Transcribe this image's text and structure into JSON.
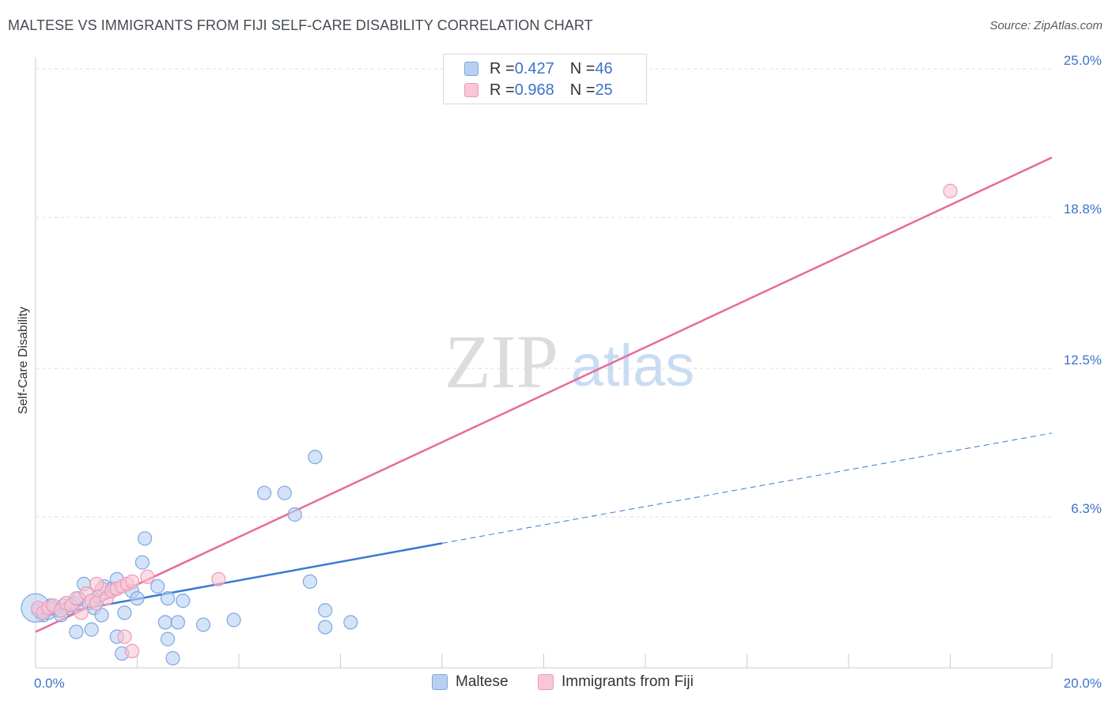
{
  "header": {
    "title": "MALTESE VS IMMIGRANTS FROM FIJI SELF-CARE DISABILITY CORRELATION CHART",
    "source": "Source: ZipAtlas.com"
  },
  "watermark": {
    "zip": "ZIP",
    "atlas": "atlas"
  },
  "legend": {
    "r_label": "R = ",
    "n_label": "N = ",
    "series": [
      {
        "name": "Maltese",
        "r": "0.427",
        "n": "46",
        "fill": "#b7d0f2",
        "stroke": "#7ea6e0"
      },
      {
        "name": "Immigrants from Fiji",
        "r": "0.968",
        "n": "25",
        "fill": "#f8c7d6",
        "stroke": "#ee9ab4"
      }
    ]
  },
  "chart_data": {
    "type": "scatter",
    "title": "MALTESE VS IMMIGRANTS FROM FIJI SELF-CARE DISABILITY CORRELATION CHART",
    "xlabel": "",
    "ylabel": "Self-Care Disability",
    "xlim": [
      0,
      20
    ],
    "ylim": [
      0,
      25.5
    ],
    "x_tick_labels": [
      {
        "value": 0,
        "label": "0.0%"
      },
      {
        "value": 20,
        "label": "20.0%"
      }
    ],
    "x_minor_ticks": [
      2,
      4,
      6,
      8,
      10,
      12,
      14,
      16,
      18,
      20
    ],
    "y_tick_labels": [
      {
        "value": 6.3,
        "label": "6.3%"
      },
      {
        "value": 12.5,
        "label": "12.5%"
      },
      {
        "value": 18.8,
        "label": "18.8%"
      },
      {
        "value": 25.0,
        "label": "25.0%"
      }
    ],
    "grid": true,
    "legend_position": "top-center",
    "series": [
      {
        "name": "Maltese",
        "color": "#3a78d4",
        "fill": "#b7d0f2",
        "stroke": "#7ea6e0",
        "trend": {
          "x0": 0,
          "y0": 2.1,
          "x1": 8.0,
          "y1": 5.2,
          "dashed_to_x": 20,
          "dashed_to_y": 9.8
        },
        "points": [
          [
            0.05,
            2.4
          ],
          [
            0.15,
            2.2
          ],
          [
            0.25,
            2.3
          ],
          [
            0.35,
            2.5
          ],
          [
            0.45,
            2.4
          ],
          [
            0.55,
            2.6
          ],
          [
            0.65,
            2.5
          ],
          [
            0.75,
            2.7
          ],
          [
            0.85,
            2.9
          ],
          [
            0.95,
            3.5
          ],
          [
            1.05,
            2.7
          ],
          [
            1.15,
            2.5
          ],
          [
            1.25,
            3.0
          ],
          [
            1.35,
            3.4
          ],
          [
            1.5,
            3.3
          ],
          [
            1.6,
            3.7
          ],
          [
            1.75,
            2.3
          ],
          [
            1.9,
            3.2
          ],
          [
            2.0,
            2.9
          ],
          [
            2.1,
            4.4
          ],
          [
            2.15,
            5.4
          ],
          [
            2.4,
            3.4
          ],
          [
            2.55,
            1.9
          ],
          [
            2.6,
            2.9
          ],
          [
            2.8,
            1.9
          ],
          [
            3.3,
            1.8
          ],
          [
            3.9,
            2.0
          ],
          [
            4.5,
            7.3
          ],
          [
            4.9,
            7.3
          ],
          [
            5.1,
            6.4
          ],
          [
            5.5,
            8.8
          ],
          [
            5.4,
            3.6
          ],
          [
            5.7,
            2.4
          ],
          [
            5.7,
            1.7
          ],
          [
            6.2,
            1.9
          ],
          [
            0.8,
            1.5
          ],
          [
            1.1,
            1.6
          ],
          [
            1.6,
            1.3
          ],
          [
            1.7,
            0.6
          ],
          [
            2.6,
            1.2
          ],
          [
            2.7,
            0.4
          ],
          [
            0.3,
            2.6
          ],
          [
            0.5,
            2.2
          ],
          [
            1.3,
            2.2
          ],
          [
            2.9,
            2.8
          ],
          [
            0.0,
            2.5
          ]
        ]
      },
      {
        "name": "Immigrants from Fiji",
        "color": "#e86b97",
        "fill": "#f8c7d6",
        "stroke": "#ee9ab4",
        "trend": {
          "x0": 0,
          "y0": 1.5,
          "x1": 20,
          "y1": 21.3
        },
        "points": [
          [
            0.05,
            2.5
          ],
          [
            0.15,
            2.3
          ],
          [
            0.25,
            2.5
          ],
          [
            0.35,
            2.6
          ],
          [
            0.5,
            2.4
          ],
          [
            0.6,
            2.7
          ],
          [
            0.7,
            2.6
          ],
          [
            0.8,
            2.9
          ],
          [
            0.9,
            2.3
          ],
          [
            1.0,
            3.1
          ],
          [
            1.1,
            2.8
          ],
          [
            1.2,
            2.7
          ],
          [
            1.3,
            3.3
          ],
          [
            1.4,
            2.9
          ],
          [
            1.5,
            3.2
          ],
          [
            1.6,
            3.3
          ],
          [
            1.7,
            3.4
          ],
          [
            1.8,
            3.5
          ],
          [
            1.9,
            3.6
          ],
          [
            2.2,
            3.8
          ],
          [
            3.6,
            3.7
          ],
          [
            1.75,
            1.3
          ],
          [
            1.9,
            0.7
          ],
          [
            1.2,
            3.5
          ],
          [
            18.0,
            19.9
          ]
        ]
      }
    ]
  },
  "bottom_legend": [
    "Maltese",
    "Immigrants from Fiji"
  ]
}
